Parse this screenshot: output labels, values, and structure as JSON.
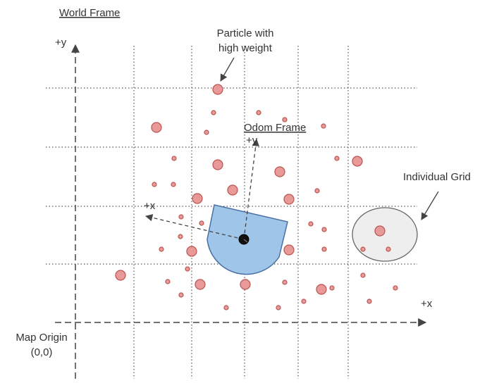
{
  "diagram": {
    "world_frame_label": "World Frame",
    "odom_frame_label": "Odom Frame",
    "world_y_label": "+y",
    "world_x_label": "+x",
    "odom_y_label": "+y",
    "odom_x_label": "+x",
    "particle_callout_line1": "Particle with",
    "particle_callout_line2": "high weight",
    "grid_callout_label": "Individual Grid",
    "map_origin_line1": "Map Origin",
    "map_origin_line2": "(0,0)"
  },
  "colors": {
    "particle_fill": "#ea9999",
    "particle_stroke": "#b85450",
    "robot_fill": "#9fc5e8",
    "robot_stroke": "#4a6fa5",
    "grid_cell_fill": "#eeeeee",
    "grid_cell_stroke": "#666666",
    "axis_color": "#444444",
    "grid_line_color": "#555555"
  }
}
